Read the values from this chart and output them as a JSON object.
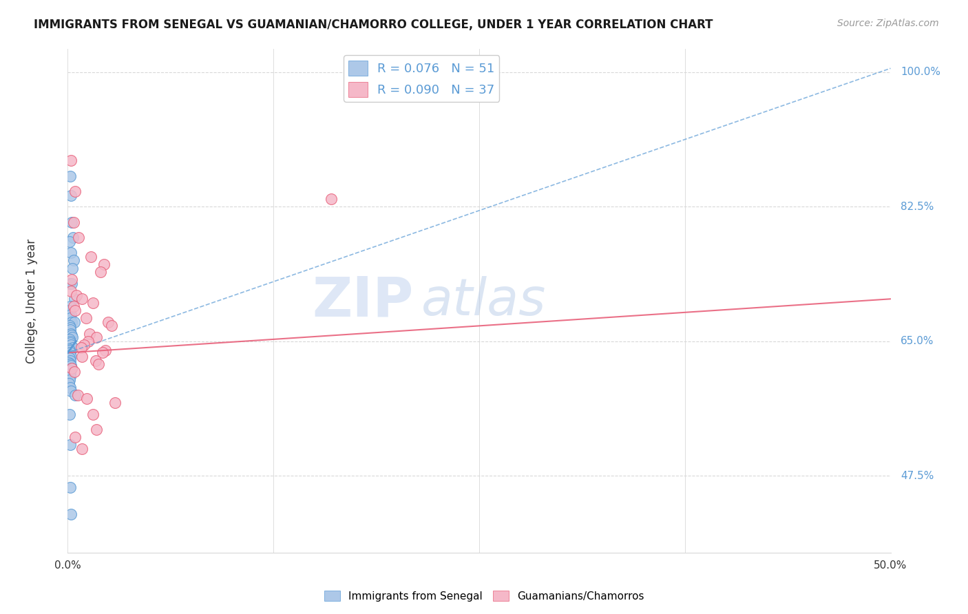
{
  "title": "IMMIGRANTS FROM SENEGAL VS GUAMANIAN/CHAMORRO COLLEGE, UNDER 1 YEAR CORRELATION CHART",
  "source": "Source: ZipAtlas.com",
  "ylabel": "College, Under 1 year",
  "xlim": [
    0.0,
    50.0
  ],
  "ylim": [
    37.5,
    103.0
  ],
  "yticks": [
    47.5,
    65.0,
    82.5,
    100.0
  ],
  "blue_R": 0.076,
  "blue_N": 51,
  "pink_R": 0.09,
  "pink_N": 37,
  "blue_color": "#adc8e8",
  "pink_color": "#f5b8c8",
  "blue_edge_color": "#5b9bd5",
  "pink_edge_color": "#e8607a",
  "blue_trend_color": "#5b9bd5",
  "pink_trend_color": "#e8607a",
  "grid_color": "#d8d8d8",
  "background_color": "#ffffff",
  "watermark_zip_color": "#c8d8f0",
  "watermark_atlas_color": "#b8cce8",
  "legend_label_blue": "Immigrants from Senegal",
  "legend_label_pink": "Guamanians/Chamorros",
  "blue_scatter_x": [
    0.15,
    0.18,
    0.25,
    0.3,
    0.12,
    0.2,
    0.35,
    0.28,
    0.1,
    0.22,
    0.4,
    0.15,
    0.12,
    0.18,
    0.16,
    0.25,
    0.38,
    0.11,
    0.14,
    0.17,
    0.19,
    0.23,
    0.27,
    0.1,
    0.13,
    0.16,
    0.2,
    0.33,
    0.08,
    0.1,
    0.13,
    0.17,
    0.21,
    0.1,
    0.13,
    0.07,
    0.16,
    0.2,
    0.24,
    0.1,
    0.13,
    0.17,
    0.1,
    0.07,
    0.13,
    0.2,
    0.45,
    0.1,
    0.13,
    0.17,
    0.2
  ],
  "blue_scatter_y": [
    86.5,
    84.0,
    80.5,
    78.5,
    78.0,
    76.5,
    75.5,
    74.5,
    72.5,
    72.5,
    70.5,
    69.5,
    69.0,
    68.5,
    68.0,
    67.5,
    67.5,
    67.0,
    66.8,
    66.5,
    66.0,
    65.8,
    65.5,
    65.2,
    65.0,
    64.8,
    64.5,
    64.2,
    64.0,
    63.8,
    63.5,
    63.2,
    63.0,
    62.8,
    62.5,
    62.2,
    62.0,
    61.8,
    61.5,
    61.2,
    60.8,
    60.4,
    60.0,
    59.5,
    59.0,
    58.5,
    58.0,
    55.5,
    51.5,
    46.0,
    42.5
  ],
  "pink_scatter_x": [
    0.2,
    0.45,
    0.35,
    0.65,
    1.4,
    2.2,
    2.0,
    0.25,
    0.18,
    0.52,
    0.88,
    1.55,
    0.35,
    0.45,
    1.1,
    2.45,
    2.65,
    1.32,
    1.75,
    1.22,
    0.97,
    0.8,
    2.3,
    2.12,
    0.88,
    1.68,
    1.85,
    0.22,
    0.4,
    0.62,
    1.15,
    2.88,
    1.55,
    1.75,
    0.45,
    0.88,
    16.0
  ],
  "pink_scatter_y": [
    88.5,
    84.5,
    80.5,
    78.5,
    76.0,
    75.0,
    74.0,
    73.0,
    71.5,
    71.0,
    70.5,
    70.0,
    69.5,
    69.0,
    68.0,
    67.5,
    67.0,
    66.0,
    65.5,
    65.0,
    64.5,
    64.2,
    63.8,
    63.5,
    63.0,
    62.5,
    62.0,
    61.5,
    61.0,
    58.0,
    57.5,
    57.0,
    55.5,
    53.5,
    52.5,
    51.0,
    83.5
  ],
  "blue_trend_x0": 0.0,
  "blue_trend_y0": 63.5,
  "blue_trend_x1": 50.0,
  "blue_trend_y1": 100.5,
  "pink_trend_x0": 0.0,
  "pink_trend_y0": 63.5,
  "pink_trend_x1": 50.0,
  "pink_trend_y1": 70.5
}
